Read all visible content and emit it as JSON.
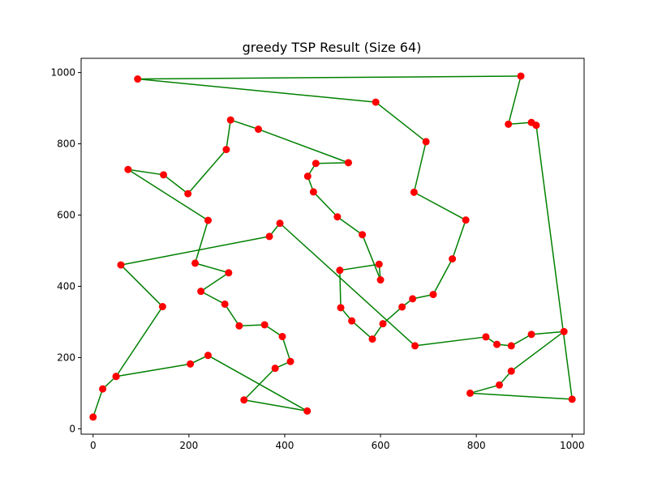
{
  "chart_data": {
    "type": "line",
    "title": "greedy TSP Result (Size 64)",
    "xlabel": "",
    "ylabel": "",
    "xlim": [
      -25,
      1025
    ],
    "ylim": [
      -15,
      1040
    ],
    "xticks": [
      0,
      200,
      400,
      600,
      800,
      1000
    ],
    "yticks": [
      0,
      200,
      400,
      600,
      800,
      1000
    ],
    "grid": false,
    "line_color": "#008000",
    "point_color": "#ff0000",
    "route": [
      [
        0,
        33
      ],
      [
        20,
        112
      ],
      [
        48,
        147
      ],
      [
        145,
        343
      ],
      [
        58,
        460
      ],
      [
        368,
        540
      ],
      [
        390,
        577
      ],
      [
        672,
        233
      ],
      [
        820,
        258
      ],
      [
        843,
        237
      ],
      [
        873,
        233
      ],
      [
        915,
        265
      ],
      [
        983,
        273
      ],
      [
        873,
        162
      ],
      [
        848,
        123
      ],
      [
        787,
        100
      ],
      [
        1000,
        83
      ],
      [
        925,
        852
      ],
      [
        915,
        860
      ],
      [
        867,
        855
      ],
      [
        893,
        990
      ],
      [
        93,
        982
      ],
      [
        590,
        917
      ],
      [
        695,
        806
      ],
      [
        670,
        664
      ],
      [
        778,
        586
      ],
      [
        750,
        477
      ],
      [
        710,
        377
      ],
      [
        667,
        365
      ],
      [
        645,
        342
      ],
      [
        605,
        295
      ],
      [
        583,
        252
      ],
      [
        540,
        303
      ],
      [
        517,
        340
      ],
      [
        515,
        445
      ],
      [
        597,
        462
      ],
      [
        600,
        418
      ],
      [
        562,
        545
      ],
      [
        510,
        595
      ],
      [
        460,
        665
      ],
      [
        448,
        709
      ],
      [
        465,
        745
      ],
      [
        533,
        747
      ],
      [
        345,
        841
      ],
      [
        287,
        867
      ],
      [
        278,
        784
      ],
      [
        198,
        660
      ],
      [
        147,
        713
      ],
      [
        73,
        728
      ],
      [
        240,
        585
      ],
      [
        213,
        465
      ],
      [
        283,
        438
      ],
      [
        225,
        386
      ],
      [
        275,
        350
      ],
      [
        305,
        289
      ],
      [
        358,
        292
      ],
      [
        395,
        259
      ],
      [
        412,
        189
      ],
      [
        380,
        170
      ],
      [
        315,
        81
      ],
      [
        447,
        50
      ],
      [
        240,
        206
      ],
      [
        203,
        182
      ],
      [
        48,
        147
      ]
    ]
  }
}
